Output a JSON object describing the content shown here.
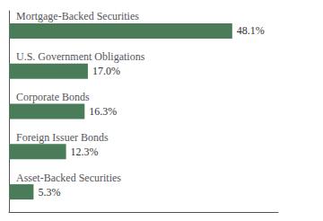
{
  "chart_data": {
    "type": "bar",
    "orientation": "horizontal",
    "categories": [
      "Mortgage-Backed Securities",
      "U.S. Government Obligations",
      "Corporate Bonds",
      "Foreign Issuer Bonds",
      "Asset-Backed Securities"
    ],
    "values": [
      48.1,
      17.0,
      16.3,
      12.3,
      5.3
    ],
    "value_labels": [
      "48.1%",
      "17.0%",
      "16.3%",
      "12.3%",
      "5.3%"
    ],
    "data_labels": true,
    "color": "#4a7c59",
    "xlim": [
      0,
      58
    ],
    "tick_labels": false,
    "grid": false
  }
}
